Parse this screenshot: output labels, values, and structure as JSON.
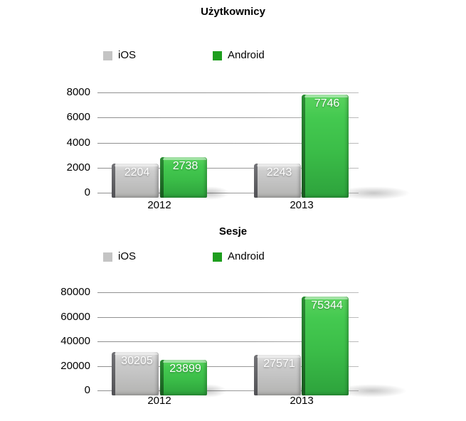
{
  "page": {
    "background": "#ffffff"
  },
  "colors": {
    "ios_bar": "#c4c4c4",
    "ios_bar_side": "#58585c",
    "android_bar": "#3ec94a",
    "android_bar_side": "#1c6f24",
    "ios_legend_swatch": "#c4c4c4",
    "android_legend_swatch": "#1e9e1e",
    "axis_text": "#000000",
    "bar_value_text": "#ffffff",
    "gridline": "#999999"
  },
  "chart_data": [
    {
      "type": "bar",
      "title": "Użytkownicy",
      "categories": [
        "2012",
        "2013"
      ],
      "series": [
        {
          "name": "iOS",
          "color": "#c4c4c4",
          "swatch": "#c4c4c4",
          "values": [
            2204,
            2243
          ]
        },
        {
          "name": "Android",
          "color": "#3ec94a",
          "swatch": "#1e9e1e",
          "values": [
            2738,
            7746
          ]
        }
      ],
      "ylim": [
        0,
        8000
      ],
      "yticks": [
        0,
        2000,
        4000,
        6000,
        8000
      ],
      "legend_position": "top",
      "grid": true,
      "value_labels_shown": true,
      "value_label_color": "#ffffff"
    },
    {
      "type": "bar",
      "title": "Sesje",
      "categories": [
        "2012",
        "2013"
      ],
      "series": [
        {
          "name": "iOS",
          "color": "#c4c4c4",
          "swatch": "#c4c4c4",
          "values": [
            30205,
            27571
          ]
        },
        {
          "name": "Android",
          "color": "#3ec94a",
          "swatch": "#1e9e1e",
          "values": [
            23899,
            75344
          ]
        }
      ],
      "ylim": [
        0,
        80000
      ],
      "yticks": [
        0,
        20000,
        40000,
        60000,
        80000
      ],
      "legend_position": "top",
      "grid": true,
      "value_labels_shown": true,
      "value_label_color": "#ffffff"
    }
  ]
}
